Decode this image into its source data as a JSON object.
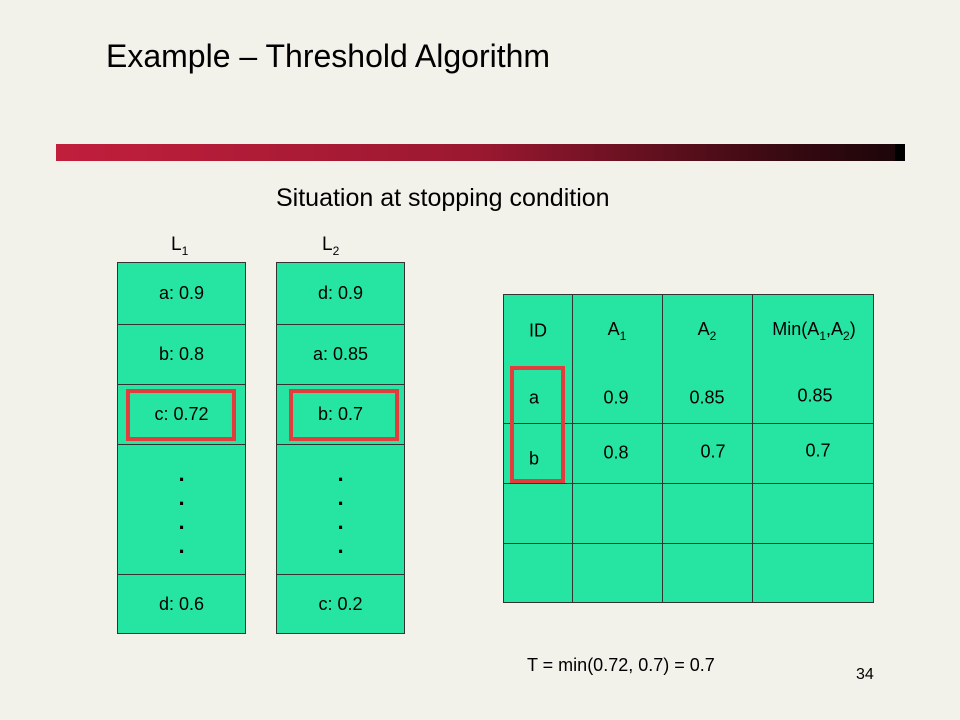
{
  "slide": {
    "title": "Example – Threshold Algorithm",
    "subtitle": "Situation at stopping condition",
    "page_number": "34",
    "formula": "T = min(0.72, 0.7) = 0.7",
    "accent_bar_color": "#c11f3c",
    "highlight_color": "#e23c3c",
    "cell_color": "#26e5a3"
  },
  "lists": [
    {
      "label": "L",
      "label_sub": "1",
      "items": [
        "a: 0.9",
        "b: 0.8",
        "c: 0.72",
        "d: 0.6"
      ],
      "highlighted_index": 2
    },
    {
      "label": "L",
      "label_sub": "2",
      "items": [
        "d: 0.9",
        "a: 0.85",
        "b: 0.7",
        "c: 0.2"
      ],
      "highlighted_index": 2
    }
  ],
  "table": {
    "headers": {
      "id": "ID",
      "a1": "A",
      "a1_sub": "1",
      "a2": "A",
      "a2_sub": "2",
      "min_prefix": "Min(A",
      "min_sub1": "1",
      "min_mid": ",A",
      "min_sub2": "2",
      "min_suffix": ")"
    },
    "rows": [
      {
        "id": "a",
        "a1": "0.9",
        "a2": "0.85",
        "min": "0.85"
      },
      {
        "id": "b",
        "a1": "0.8",
        "a2": "0.7",
        "min": "0.7"
      }
    ]
  }
}
